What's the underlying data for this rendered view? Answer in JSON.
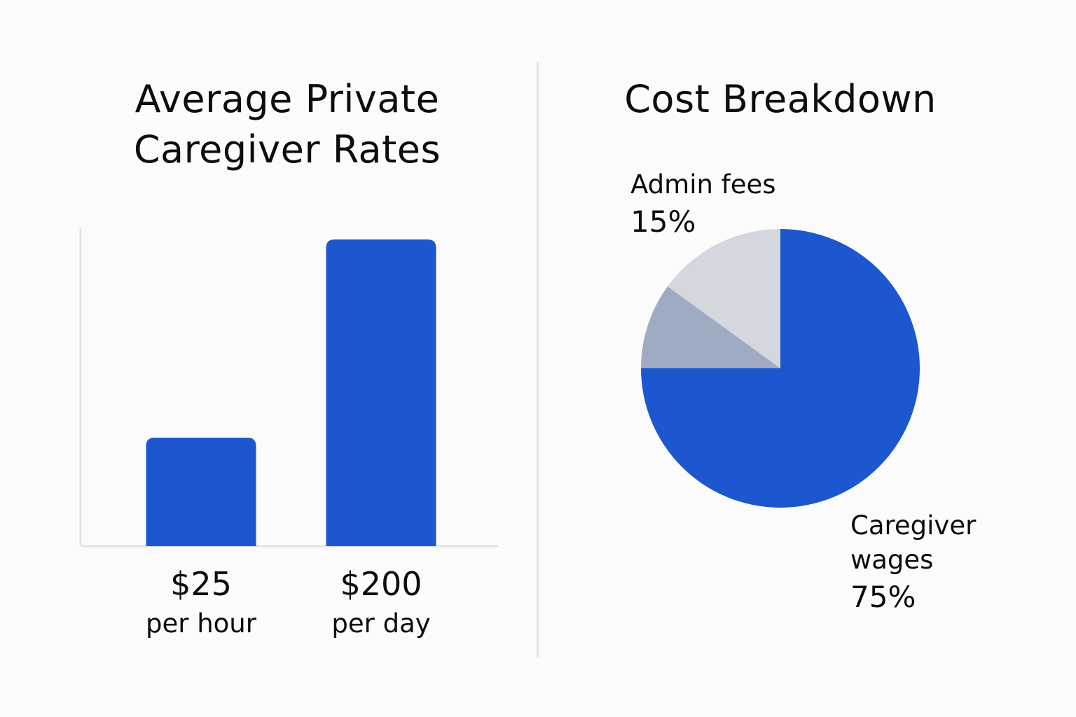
{
  "colors": {
    "primary": "#1c57cf",
    "slice_mid": "#9eabc3",
    "slice_light": "#d4d7de",
    "axis": "#e3e4e8",
    "background": "#fbfbfc",
    "text": "#0d0d0f"
  },
  "chart_data": [
    {
      "type": "bar",
      "title": "Average Private Caregiver Rates",
      "title_lines": [
        "Average Private",
        "Caregiver Rates"
      ],
      "categories": [
        "per hour",
        "per day"
      ],
      "values": [
        25,
        200
      ],
      "value_labels": [
        "$25",
        "$200"
      ],
      "xlabel": "",
      "ylabel": "",
      "ylim": [
        0,
        200
      ],
      "grid": false,
      "value_transform": "display bar heights are not linear; short bar ~36% of tall bar"
    },
    {
      "type": "pie",
      "title": "Cost Breakdown",
      "start": "top, clockwise",
      "slices": [
        {
          "label_lines": [
            "Caregiver",
            "wages"
          ],
          "label": "Caregiver wages",
          "value": 75,
          "value_label": "75%",
          "color_key": "primary",
          "labeled": true
        },
        {
          "label": "",
          "value": 10,
          "value_label": "",
          "color_key": "slice_mid",
          "labeled": false
        },
        {
          "label_lines": [
            "Admin fees"
          ],
          "label": "Admin fees",
          "value": 15,
          "value_label": "15%",
          "color_key": "slice_light",
          "labeled": true
        }
      ]
    }
  ]
}
